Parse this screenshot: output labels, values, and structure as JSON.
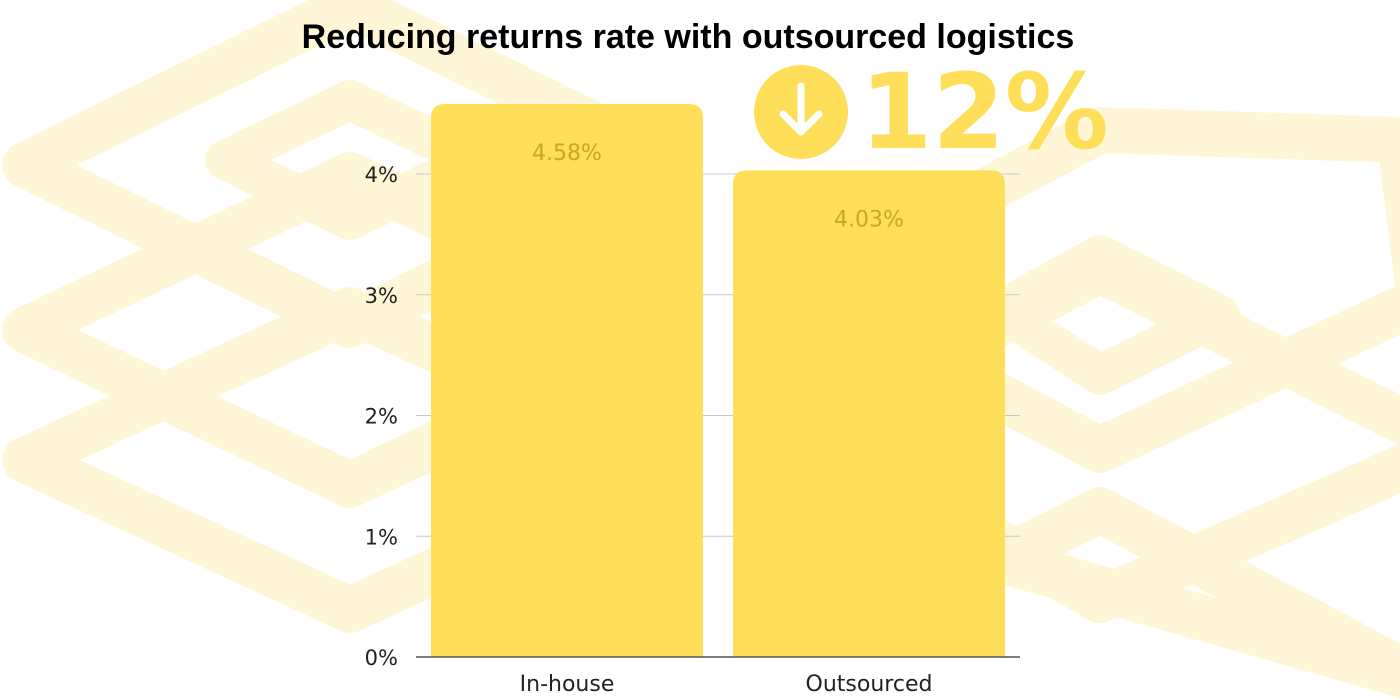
{
  "chart_data": {
    "type": "bar",
    "title": "Reducing returns rate with outsourced logistics",
    "categories": [
      "In-house",
      "Outsourced"
    ],
    "values": [
      4.58,
      4.03
    ],
    "data_labels": [
      "4.58%",
      "4.03%"
    ],
    "ylim": [
      0,
      4
    ],
    "yticks": [
      0,
      1,
      2,
      3,
      4
    ],
    "ytick_labels": [
      "0%",
      "1%",
      "2%",
      "3%",
      "4%"
    ],
    "xlabel": "",
    "ylabel": "",
    "grid": true,
    "legend": "none"
  },
  "callout": {
    "icon": "arrow-down-circle-icon",
    "text": "12%"
  },
  "colors": {
    "bar": "#FFDE59",
    "data_label": "#C9A81E",
    "accent": "#FFDE59",
    "background_pattern": "#FFF6D8",
    "grid": "#C8C8C8",
    "axis": "#555555",
    "text": "#222222"
  }
}
